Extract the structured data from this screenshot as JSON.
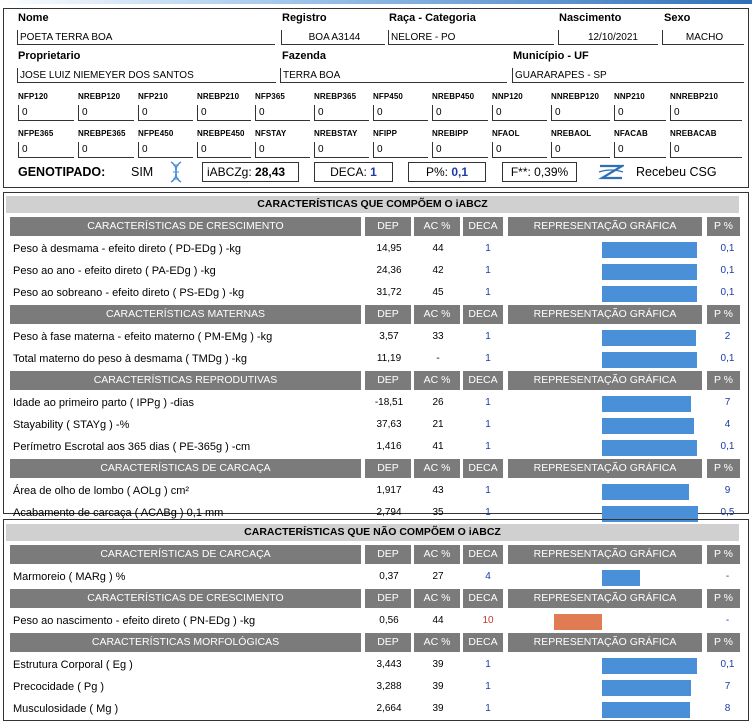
{
  "header": {
    "nome_label": "Nome",
    "nome": "POETA TERRA BOA",
    "registro_label": "Registro",
    "registro": "BOA A3144",
    "raca_label": "Raça - Categoria",
    "raca": "NELORE - PO",
    "nascimento_label": "Nascimento",
    "nascimento": "12/10/2021",
    "sexo_label": "Sexo",
    "sexo": "MACHO",
    "proprietario_label": "Proprietario",
    "proprietario": "JOSE LUIZ NIEMEYER DOS SANTOS",
    "fazenda_label": "Fazenda",
    "fazenda": "TERRA BOA",
    "municipio_label": "Município - UF",
    "municipio": "GUARARAPES - SP"
  },
  "stats_row1": [
    {
      "label": "NFP120",
      "value": "0"
    },
    {
      "label": "NREBP120",
      "value": "0"
    },
    {
      "label": "NFP210",
      "value": "0"
    },
    {
      "label": "NREBP210",
      "value": "0"
    },
    {
      "label": "NFP365",
      "value": "0"
    },
    {
      "label": "NREBP365",
      "value": "0"
    },
    {
      "label": "NFP450",
      "value": "0"
    },
    {
      "label": "NREBP450",
      "value": "0"
    },
    {
      "label": "NNP120",
      "value": "0"
    },
    {
      "label": "NNREBP120",
      "value": "0"
    },
    {
      "label": "NNP210",
      "value": "0"
    },
    {
      "label": "NNREBP210",
      "value": "0"
    }
  ],
  "stats_row2": [
    {
      "label": "NFPE365",
      "value": "0"
    },
    {
      "label": "NREBPE365",
      "value": "0"
    },
    {
      "label": "NFPE450",
      "value": "0"
    },
    {
      "label": "NREBPE450",
      "value": "0"
    },
    {
      "label": "NFSTAY",
      "value": "0"
    },
    {
      "label": "NREBSTAY",
      "value": "0"
    },
    {
      "label": "NFIPP",
      "value": "0"
    },
    {
      "label": "NREBIPP",
      "value": "0"
    },
    {
      "label": "NFAOL",
      "value": "0"
    },
    {
      "label": "NREBAOL",
      "value": "0"
    },
    {
      "label": "NFACAB",
      "value": "0"
    },
    {
      "label": "NREBACAB",
      "value": "0"
    }
  ],
  "genotipado": {
    "label": "GENOTIPADO:",
    "value": "SIM",
    "iabczg_label": "iABCZg:",
    "iabczg": "28,43",
    "deca_label": "DECA:",
    "deca": "1",
    "p_label": "P%:",
    "p": "0,1",
    "f_label": "F**: 0,39%",
    "csg": "Recebeu CSG"
  },
  "col_headers": {
    "dep": "DEP",
    "ac": "AC %",
    "deca": "DECA",
    "graf": "REPRESENTAÇÃO GRÁFICA",
    "p": "P %"
  },
  "section1": {
    "title": "CARACTERÍSTICAS QUE COMPÕEM O iABCZ",
    "groups": [
      {
        "title": "CARACTERÍSTICAS DE CRESCIMENTO",
        "rows": [
          {
            "name": "Peso à desmama - efeito direto ( PD-EDg ) -kg",
            "dep": "14,95",
            "ac": "44",
            "deca": "1",
            "p": "0,1",
            "bar": 0.99
          },
          {
            "name": "Peso ao ano - efeito direto ( PA-EDg ) -kg",
            "dep": "24,36",
            "ac": "42",
            "deca": "1",
            "p": "0,1",
            "bar": 0.99
          },
          {
            "name": "Peso ao sobreano - efeito direto ( PS-EDg ) -kg",
            "dep": "31,72",
            "ac": "45",
            "deca": "1",
            "p": "0,1",
            "bar": 0.99
          }
        ]
      },
      {
        "title": "CARACTERÍSTICAS MATERNAS",
        "rows": [
          {
            "name": "Peso à fase materna - efeito materno ( PM-EMg ) -kg",
            "dep": "3,57",
            "ac": "33",
            "deca": "1",
            "p": "2",
            "bar": 0.98
          },
          {
            "name": "Total materno do peso à desmama ( TMDg ) -kg",
            "dep": "11,19",
            "ac": "-",
            "deca": "1",
            "p": "0,1",
            "bar": 0.99
          }
        ]
      },
      {
        "title": "CARACTERÍSTICAS REPRODUTIVAS",
        "rows": [
          {
            "name": "Idade ao primeiro parto ( IPPg ) -dias",
            "dep": "-18,51",
            "ac": "26",
            "deca": "1",
            "p": "7",
            "bar": 0.93
          },
          {
            "name": "Stayability ( STAYg ) -%",
            "dep": "37,63",
            "ac": "21",
            "deca": "1",
            "p": "4",
            "bar": 0.96
          },
          {
            "name": "Perímetro Escrotal aos 365 dias ( PE-365g ) -cm",
            "dep": "1,416",
            "ac": "41",
            "deca": "1",
            "p": "0,1",
            "bar": 0.99
          }
        ]
      },
      {
        "title": "CARACTERÍSTICAS DE CARCAÇA",
        "rows": [
          {
            "name": "Área de olho de lombo ( AOLg ) cm²",
            "dep": "1,917",
            "ac": "43",
            "deca": "1",
            "p": "9",
            "bar": 0.91
          },
          {
            "name": "Acabamento de carcaça ( ACABg ) 0,1 mm",
            "dep": "2,794",
            "ac": "35",
            "deca": "1",
            "p": "0,5",
            "bar": 0.995
          }
        ]
      }
    ]
  },
  "section2": {
    "title": "CARACTERÍSTICAS QUE NÃO COMPÕEM O iABCZ",
    "groups": [
      {
        "title": "CARACTERÍSTICAS DE CARCAÇA",
        "rows": [
          {
            "name": "Marmoreio ( MARg ) %",
            "dep": "0,37",
            "ac": "27",
            "deca": "4",
            "p": "-",
            "bar": 0.4
          }
        ]
      },
      {
        "title": "CARACTERÍSTICAS DE CRESCIMENTO",
        "rows": [
          {
            "name": "Peso ao nascimento - efeito direto ( PN-EDg ) -kg",
            "dep": "0,56",
            "ac": "44",
            "deca": "10",
            "p": "-",
            "bar": 0.5,
            "neg": true
          }
        ]
      },
      {
        "title": "CARACTERÍSTICAS MORFOLÓGICAS",
        "rows": [
          {
            "name": "Estrutura Corporal ( Eg )",
            "dep": "3,443",
            "ac": "39",
            "deca": "1",
            "p": "0,1",
            "bar": 0.99
          },
          {
            "name": "Precocidade ( Pg )",
            "dep": "3,288",
            "ac": "39",
            "deca": "1",
            "p": "7",
            "bar": 0.93
          },
          {
            "name": "Musculosidade ( Mg )",
            "dep": "2,664",
            "ac": "39",
            "deca": "1",
            "p": "8",
            "bar": 0.92
          }
        ]
      }
    ]
  },
  "colors": {
    "bar_pos": "#4a90d9",
    "bar_neg": "#e07b54",
    "header_bg": "#7b7b7b",
    "title_bg": "#d0d0d0",
    "value_blue": "#1d3aa8",
    "deca_red": "#c0392b"
  }
}
